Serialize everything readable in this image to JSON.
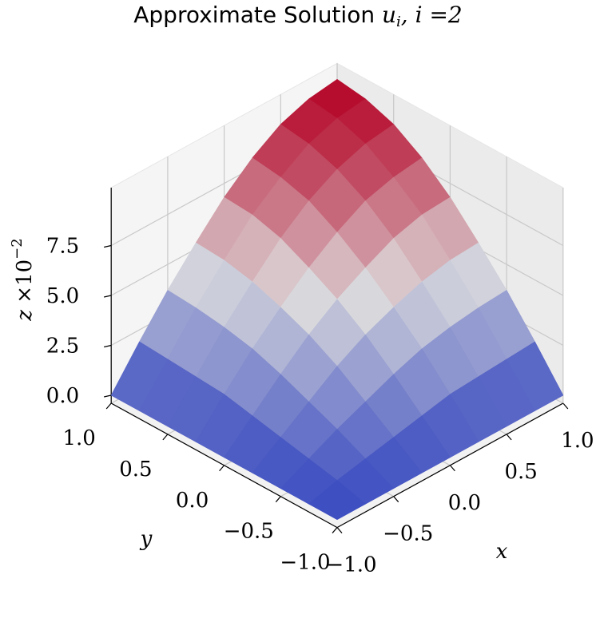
{
  "chart_data": {
    "type": "surface3d",
    "title": {
      "text": "Approximate Solution",
      "math": "u",
      "sub": "i",
      "rest": ", i =2"
    },
    "xlabel": "x",
    "ylabel": "y",
    "zlabel": "z",
    "zlabel_offset": "×10",
    "zlabel_exponent": "−2",
    "x": [
      -1,
      -0.75,
      -0.5,
      -0.25,
      0,
      0.25,
      0.5,
      0.75,
      1
    ],
    "y": [
      -1,
      -0.75,
      -0.5,
      -0.25,
      0,
      0.25,
      0.5,
      0.75,
      1
    ],
    "z": [
      [
        0,
        0,
        0,
        0,
        0,
        0,
        0,
        0,
        0
      ],
      [
        0,
        0.4,
        0.7,
        1.0,
        1.3,
        1.6,
        1.7,
        1.8,
        1.9
      ],
      [
        0,
        0.7,
        1.4,
        2.0,
        2.6,
        3.1,
        3.4,
        3.6,
        3.7
      ],
      [
        0,
        1.0,
        2.0,
        3.0,
        3.8,
        4.4,
        4.9,
        5.2,
        5.3
      ],
      [
        0,
        1.3,
        2.6,
        3.8,
        4.8,
        5.6,
        6.3,
        6.7,
        6.8
      ],
      [
        0,
        1.6,
        3.1,
        4.4,
        5.6,
        6.6,
        7.4,
        7.8,
        8.0
      ],
      [
        0,
        1.7,
        3.4,
        4.9,
        6.3,
        7.4,
        8.2,
        8.7,
        8.9
      ],
      [
        0,
        1.8,
        3.6,
        5.2,
        6.7,
        7.8,
        8.7,
        9.2,
        9.4
      ],
      [
        0,
        1.9,
        3.7,
        5.3,
        6.8,
        8.0,
        8.9,
        9.4,
        9.6
      ]
    ],
    "xlim": [
      -1,
      1
    ],
    "ylim": [
      -1,
      1
    ],
    "zlim": [
      -0.4,
      10.4
    ],
    "xticks": [
      {
        "value": -1,
        "label": "−1.0"
      },
      {
        "value": -0.5,
        "label": "−0.5"
      },
      {
        "value": 0,
        "label": "0.0"
      },
      0.5,
      {
        "value": 1,
        "label": "1.0"
      }
    ],
    "yticks": [
      {
        "value": -1,
        "label": "−1.0"
      },
      {
        "value": -0.5,
        "label": "−0.5"
      },
      {
        "value": 0,
        "label": "0.0"
      },
      0.5,
      {
        "value": 1,
        "label": "1.0"
      }
    ],
    "zticks": [
      {
        "value": 0,
        "label": "0.0"
      },
      2.5,
      {
        "value": 5,
        "label": "5.0"
      },
      7.5
    ],
    "colormap": [
      "#3b4cc0",
      "#dddddd",
      "#b40426"
    ],
    "grid": true
  }
}
